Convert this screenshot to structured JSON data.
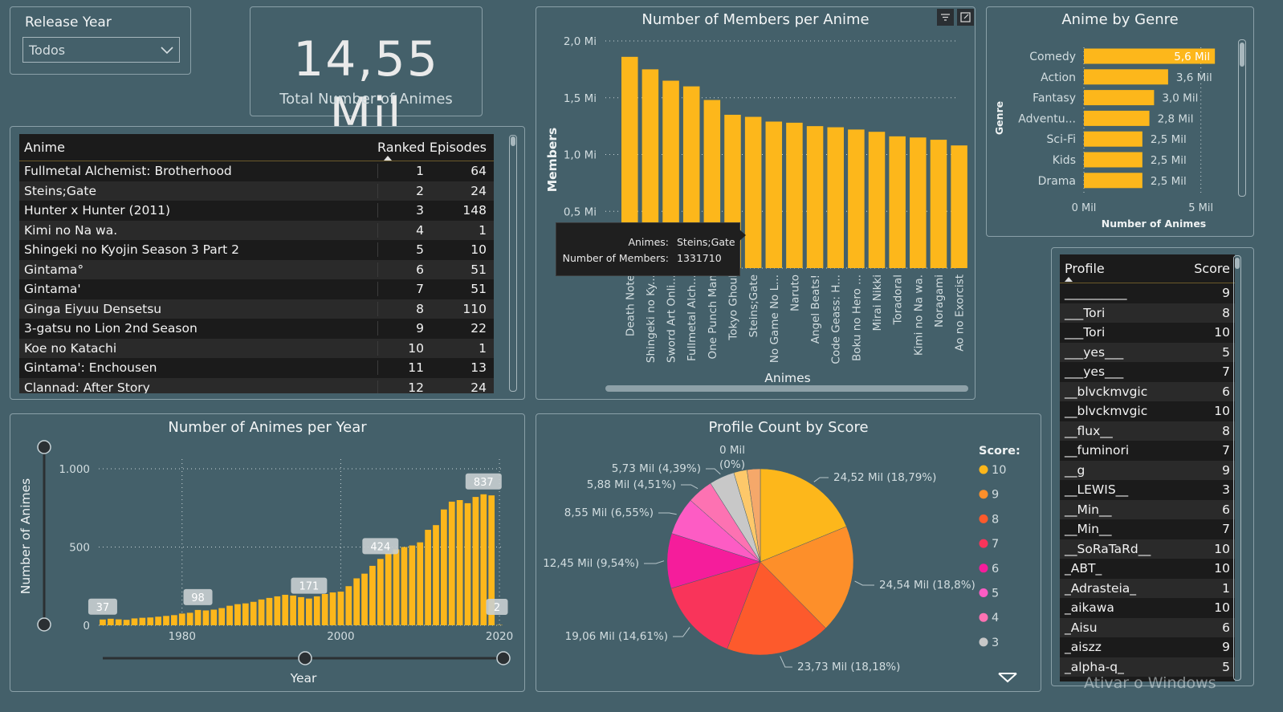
{
  "slicer": {
    "title": "Release Year",
    "value": "Todos"
  },
  "kpi": {
    "value": "14,55 Mil",
    "label": "Total Number of Animes"
  },
  "anime_table": {
    "headers": [
      "Anime",
      "Ranked",
      "Episodes"
    ],
    "rows": [
      [
        "Fullmetal Alchemist: Brotherhood",
        "1",
        "64"
      ],
      [
        "Steins;Gate",
        "2",
        "24"
      ],
      [
        "Hunter x Hunter (2011)",
        "3",
        "148"
      ],
      [
        "Kimi no Na wa.",
        "4",
        "1"
      ],
      [
        "Shingeki no Kyojin Season 3 Part 2",
        "5",
        "10"
      ],
      [
        "Gintama°",
        "6",
        "51"
      ],
      [
        "Gintama'",
        "7",
        "51"
      ],
      [
        "Ginga Eiyuu Densetsu",
        "8",
        "110"
      ],
      [
        "3-gatsu no Lion 2nd Season",
        "9",
        "22"
      ],
      [
        "Koe no Katachi",
        "10",
        "1"
      ],
      [
        "Gintama': Enchousen",
        "11",
        "13"
      ],
      [
        "Clannad: After Story",
        "12",
        "24"
      ]
    ]
  },
  "profile_table": {
    "headers": [
      "Profile",
      "Score"
    ],
    "rows": [
      [
        "__________",
        "9"
      ],
      [
        "___Tori",
        "8"
      ],
      [
        "___Tori",
        "10"
      ],
      [
        "___yes___",
        "5"
      ],
      [
        "___yes___",
        "7"
      ],
      [
        "__blvckmvgic",
        "6"
      ],
      [
        "__blvckmvgic",
        "10"
      ],
      [
        "__flux__",
        "8"
      ],
      [
        "__fuminori",
        "7"
      ],
      [
        "__g",
        "9"
      ],
      [
        "__LEWIS__",
        "3"
      ],
      [
        "__Min__",
        "6"
      ],
      [
        "__Min__",
        "7"
      ],
      [
        "__SoRaTaRd__",
        "10"
      ],
      [
        "_ABT_",
        "10"
      ],
      [
        "_Adrasteia_",
        "1"
      ],
      [
        "_aikawa",
        "10"
      ],
      [
        "_Aisu",
        "6"
      ],
      [
        "_aiszz",
        "9"
      ],
      [
        "_alpha-q_",
        "5"
      ]
    ]
  },
  "tooltip": {
    "k1": "Animes:",
    "v1": "Steins;Gate",
    "k2": "Number of Members:",
    "v2": "1331710"
  },
  "watermark": "Ativar o Windows",
  "colors": {
    "bar": "#fdb71b",
    "background": "#44606a"
  },
  "chart_data": [
    {
      "id": "members",
      "type": "bar",
      "title": "Number of Members per Anime",
      "xlabel": "Animes",
      "ylabel": "Members",
      "ylim": [
        0,
        2000000
      ],
      "yticks": [
        {
          "v": 500000,
          "label": "0,5 Mi"
        },
        {
          "v": 1000000,
          "label": "1,0 Mi"
        },
        {
          "v": 1500000,
          "label": "1,5 Mi"
        },
        {
          "v": 2000000,
          "label": "2,0 Mi"
        }
      ],
      "categories": [
        "Death Note",
        "Shingeki no Ky...",
        "Sword Art Onli...",
        "Fullmetal Alch...",
        "One Punch Man",
        "Tokyo Ghoul",
        "Steins;Gate",
        "No Game No L...",
        "Naruto",
        "Angel Beats!",
        "Code Geass: H...",
        "Boku no Hero ...",
        "Mirai Nikki",
        "Toradoral",
        "Kimi no Na wa.",
        "Noragami",
        "Ao no Exorcist"
      ],
      "values": [
        1860000,
        1750000,
        1650000,
        1600000,
        1480000,
        1350000,
        1331710,
        1290000,
        1280000,
        1250000,
        1240000,
        1220000,
        1200000,
        1160000,
        1150000,
        1130000,
        1080000
      ]
    },
    {
      "id": "genre",
      "type": "bar",
      "orientation": "horizontal",
      "title": "Anime by Genre",
      "xlabel": "Number of Animes",
      "ylabel": "Genre",
      "xlim": [
        0,
        5800
      ],
      "xticks": [
        {
          "v": 0,
          "label": "0 Mil"
        },
        {
          "v": 5000,
          "label": "5 Mil"
        }
      ],
      "categories": [
        "Comedy",
        "Action",
        "Fantasy",
        "Adventu...",
        "Sci-Fi",
        "Kids",
        "Drama"
      ],
      "values": [
        5600,
        3600,
        3000,
        2800,
        2500,
        2500,
        2500
      ],
      "labels": [
        "5,6 Mil",
        "3,6 Mil",
        "3,0 Mil",
        "2,8 Mil",
        "2,5 Mil",
        "2,5 Mil",
        "2,5 Mil"
      ]
    },
    {
      "id": "years",
      "type": "bar",
      "title": "Number of Animes per Year",
      "xlabel": "Year",
      "ylabel": "Number of Animes",
      "ylim": [
        0,
        1000
      ],
      "yticks": [
        {
          "v": 0,
          "label": "0"
        },
        {
          "v": 500,
          "label": "500"
        },
        {
          "v": 1000,
          "label": "1.000"
        }
      ],
      "xticks": [
        {
          "v": 1980,
          "label": "1980"
        },
        {
          "v": 2000,
          "label": "2000"
        },
        {
          "v": 2020,
          "label": "2020"
        }
      ],
      "x": [
        1970,
        1971,
        1972,
        1973,
        1974,
        1975,
        1976,
        1977,
        1978,
        1979,
        1980,
        1981,
        1982,
        1983,
        1984,
        1985,
        1986,
        1987,
        1988,
        1989,
        1990,
        1991,
        1992,
        1993,
        1994,
        1995,
        1996,
        1997,
        1998,
        1999,
        2000,
        2001,
        2002,
        2003,
        2004,
        2005,
        2006,
        2007,
        2008,
        2009,
        2010,
        2011,
        2012,
        2013,
        2014,
        2015,
        2016,
        2017,
        2018,
        2019,
        2020
      ],
      "values": [
        37,
        42,
        38,
        35,
        44,
        48,
        50,
        55,
        60,
        65,
        75,
        80,
        98,
        95,
        100,
        110,
        125,
        135,
        140,
        150,
        165,
        175,
        185,
        195,
        190,
        180,
        171,
        185,
        200,
        210,
        215,
        250,
        300,
        330,
        380,
        424,
        460,
        485,
        500,
        510,
        530,
        610,
        640,
        740,
        790,
        800,
        780,
        820,
        837,
        830,
        2
      ],
      "annotations": [
        {
          "x": 1970,
          "label": "37"
        },
        {
          "x": 1982,
          "label": "98"
        },
        {
          "x": 1996,
          "label": "171"
        },
        {
          "x": 2005,
          "label": "424"
        },
        {
          "x": 2018,
          "label": "837"
        },
        {
          "x": 2020,
          "label": "2"
        }
      ]
    },
    {
      "id": "score",
      "type": "pie",
      "title": "Profile Count by Score",
      "legend_title": "Score:",
      "legend_position": "right",
      "slices": [
        {
          "label": "10",
          "value": 24.52,
          "text": "24,52 Mil (18,79%)",
          "color": "#fdb71b"
        },
        {
          "label": "9",
          "value": 24.54,
          "text": "24,54 Mil (18,8%)",
          "color": "#fd8f2a"
        },
        {
          "label": "8",
          "value": 23.73,
          "text": "23,73 Mil (18,18%)",
          "color": "#fd5a2c"
        },
        {
          "label": "7",
          "value": 19.06,
          "text": "19,06 Mil (14,61%)",
          "color": "#f9345a"
        },
        {
          "label": "6",
          "value": 12.45,
          "text": "12,45 Mil (9,54%)",
          "color": "#f51d9b"
        },
        {
          "label": "5",
          "value": 8.55,
          "text": "8,55 Mil (6,55%)",
          "color": "#fd5cc4"
        },
        {
          "label": "4",
          "value": 5.88,
          "text": "5,88 Mil (4,51%)",
          "color": "#fd72b2"
        },
        {
          "label": "3",
          "value": 5.73,
          "text": "5,73 Mil (4,39%)",
          "color": "#c8c8c8"
        },
        {
          "label": "",
          "value": 3.0,
          "text": "",
          "color": "#fdc86a"
        },
        {
          "label": "",
          "value": 3.0,
          "text": "",
          "color": "#f5a86a"
        },
        {
          "label": "",
          "value": 0.0,
          "text": "0 Mil (0%)",
          "color": "#fdb71b"
        }
      ],
      "legend": [
        {
          "label": "10",
          "color": "#fdb71b"
        },
        {
          "label": "9",
          "color": "#fd8f2a"
        },
        {
          "label": "8",
          "color": "#fd5a2c"
        },
        {
          "label": "7",
          "color": "#f9345a"
        },
        {
          "label": "6",
          "color": "#f51d9b"
        },
        {
          "label": "5",
          "color": "#fd5cc4"
        },
        {
          "label": "4",
          "color": "#fd72b2"
        },
        {
          "label": "3",
          "color": "#c8c8c8"
        }
      ]
    }
  ]
}
